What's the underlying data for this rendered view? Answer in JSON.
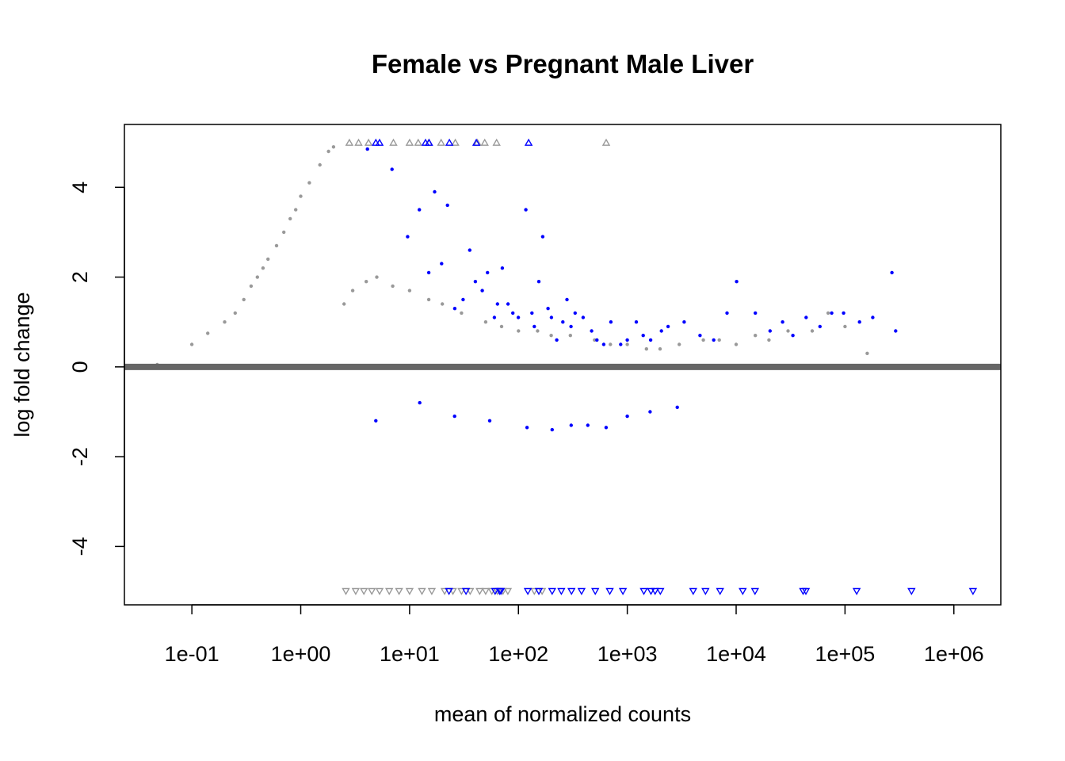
{
  "chart_data": {
    "type": "scatter",
    "title": "Female vs Pregnant Male Liver",
    "xlabel": "mean of normalized counts",
    "ylabel": "log fold change",
    "x_scale": "log10",
    "xlim": [
      0.024,
      2700000
    ],
    "ylim": [
      -5.3,
      5.4
    ],
    "x_ticks": [
      {
        "value": 0.1,
        "label": "1e-01"
      },
      {
        "value": 1,
        "label": "1e+00"
      },
      {
        "value": 10,
        "label": "1e+01"
      },
      {
        "value": 100,
        "label": "1e+02"
      },
      {
        "value": 1000,
        "label": "1e+03"
      },
      {
        "value": 10000,
        "label": "1e+04"
      },
      {
        "value": 100000,
        "label": "1e+05"
      },
      {
        "value": 1000000,
        "label": "1e+06"
      }
    ],
    "y_ticks": [
      {
        "value": -4,
        "label": "-4"
      },
      {
        "value": -2,
        "label": "-2"
      },
      {
        "value": 0,
        "label": "0"
      },
      {
        "value": 2,
        "label": "2"
      },
      {
        "value": 4,
        "label": "4"
      }
    ],
    "hline": {
      "y": 0,
      "color": "#666666"
    },
    "colors": {
      "nonsignificant": "#999999",
      "significant": "#0000ff"
    },
    "clip_limits": {
      "top": 5,
      "bottom": -5
    },
    "series": [
      {
        "significant": true,
        "x": [
          4.1,
          6.9,
          9.6,
          12.3,
          15,
          17,
          19.7,
          22.3,
          26,
          31,
          35.7,
          40.2,
          46.5,
          52,
          60.1,
          64.2,
          71.1,
          80.2,
          88.8,
          99.7,
          117,
          133,
          140,
          154,
          167,
          187,
          201,
          225,
          256,
          279,
          304,
          332,
          393,
          470,
          526,
          608,
          706,
          870,
          1000,
          1210,
          1400,
          1640,
          2060,
          2370,
          3330,
          4660,
          6220,
          8240,
          10100,
          15000,
          20500,
          26700,
          33200,
          43900,
          58900,
          75500,
          97100,
          136000,
          180000,
          270000,
          292000,
          4.9,
          12.4,
          25.9,
          54.5,
          120,
          204,
          305,
          434,
          639,
          1000,
          1620,
          2880
        ],
        "y": [
          4.85,
          4.4,
          2.9,
          3.5,
          2.1,
          3.9,
          2.3,
          3.6,
          1.3,
          1.5,
          2.6,
          1.9,
          1.7,
          2.1,
          1.1,
          1.4,
          2.2,
          1.4,
          1.2,
          1.1,
          3.5,
          1.2,
          0.9,
          1.9,
          2.9,
          1.3,
          1.1,
          0.6,
          1.0,
          1.5,
          0.9,
          1.2,
          1.1,
          0.8,
          0.6,
          0.5,
          1.0,
          0.5,
          0.6,
          1.0,
          0.7,
          0.6,
          0.8,
          0.9,
          1.0,
          0.7,
          0.6,
          1.2,
          1.9,
          1.2,
          0.8,
          1.0,
          0.7,
          1.1,
          0.9,
          1.2,
          1.2,
          1.0,
          1.1,
          2.1,
          0.8,
          -1.2,
          -0.8,
          -1.1,
          -1.2,
          -1.35,
          -1.4,
          -1.3,
          -1.3,
          -1.35,
          -1.1,
          -1.0,
          -0.9
        ],
        "x_clip_top": [
          4.9,
          5.3,
          14,
          15.1,
          23.2,
          41,
          124
        ],
        "x_clip_bottom": [
          23,
          33,
          61,
          67,
          69,
          122,
          154,
          204,
          248,
          307,
          380,
          508,
          690,
          912,
          1420,
          1650,
          1800,
          2010,
          4030,
          5230,
          7110,
          11500,
          14900,
          41200,
          43700,
          128000,
          408000,
          1500000
        ]
      },
      {
        "significant": false,
        "x": [
          0.048,
          0.1,
          0.14,
          0.2,
          0.25,
          0.3,
          0.35,
          0.4,
          0.45,
          0.5,
          0.6,
          0.7,
          0.8,
          0.9,
          1.0,
          1.2,
          1.5,
          1.8,
          2.0,
          2.5,
          3,
          4,
          5,
          7,
          10,
          15,
          20,
          30,
          50,
          70,
          100,
          150,
          200,
          300,
          500,
          700,
          1000,
          1500,
          2000,
          3000,
          5000,
          7000,
          10000,
          15000,
          20000,
          30000,
          50000,
          70000,
          100000,
          160000
        ],
        "y": [
          0.05,
          0.5,
          0.75,
          1.0,
          1.2,
          1.5,
          1.8,
          2.0,
          2.2,
          2.4,
          2.7,
          3.0,
          3.3,
          3.5,
          3.8,
          4.1,
          4.5,
          4.8,
          4.9,
          1.4,
          1.7,
          1.9,
          2.0,
          1.8,
          1.7,
          1.5,
          1.4,
          1.2,
          1.0,
          0.9,
          0.8,
          0.8,
          0.7,
          0.7,
          0.6,
          0.5,
          0.5,
          0.4,
          0.4,
          0.5,
          0.6,
          0.6,
          0.5,
          0.7,
          0.6,
          0.8,
          0.8,
          1.2,
          0.9,
          0.3
        ],
        "x_clip_top": [
          2.8,
          3.4,
          4.2,
          7.1,
          10,
          12,
          15,
          19.5,
          26.3,
          42,
          49,
          63,
          640
        ],
        "x_clip_bottom": [
          2.6,
          3.2,
          3.8,
          4.5,
          5.3,
          6.5,
          8,
          10,
          13,
          16,
          21,
          25,
          30,
          36,
          44,
          50,
          57,
          64,
          72,
          80,
          140,
          165
        ]
      }
    ]
  }
}
